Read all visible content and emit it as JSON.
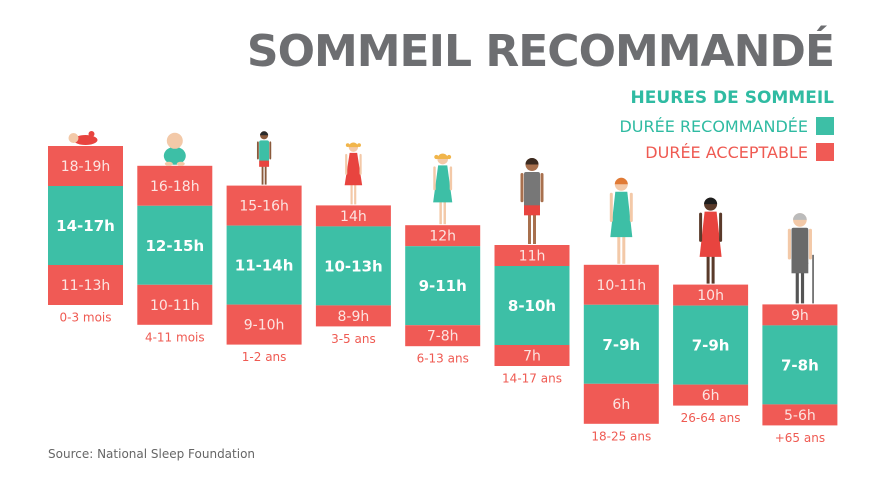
{
  "title": "SOMMEIL RECOMMANDÉ",
  "legend": {
    "heading": "HEURES DE SOMMEIL",
    "recommended": "DURÉE RECOMMANDÉE",
    "acceptable": "DURÉE ACCEPTABLE"
  },
  "source": "Source: National Sleep Foundation",
  "colors": {
    "recommended": "#3dbfa6",
    "acceptable": "#f05a55",
    "title": "#6d6e71",
    "age_label": "#ef5a52"
  },
  "chart_data": {
    "type": "bar",
    "categories": [
      "0-3 mois",
      "4-11 mois",
      "1-2 ans",
      "3-5 ans",
      "6-13 ans",
      "14-17 ans",
      "18-25 ans",
      "26-64 ans",
      "+65 ans"
    ],
    "series": [
      {
        "name": "DURÉE RECOMMANDÉE",
        "values": [
          [
            14,
            17
          ],
          [
            12,
            15
          ],
          [
            11,
            14
          ],
          [
            10,
            13
          ],
          [
            9,
            11
          ],
          [
            8,
            10
          ],
          [
            7,
            9
          ],
          [
            7,
            9
          ],
          [
            7,
            8
          ]
        ],
        "labels": [
          "14-17h",
          "12-15h",
          "11-14h",
          "10-13h",
          "9-11h",
          "8-10h",
          "7-9h",
          "7-9h",
          "7-8h"
        ]
      },
      {
        "name": "DURÉE ACCEPTABLE (haut)",
        "labels": [
          "18-19h",
          "16-18h",
          "15-16h",
          "14h",
          "12h",
          "11h",
          "10-11h",
          "10h",
          "9h"
        ]
      },
      {
        "name": "DURÉE ACCEPTABLE (bas)",
        "labels": [
          "11-13h",
          "10-11h",
          "9-10h",
          "8-9h",
          "7-8h",
          "7h",
          "6h",
          "6h",
          "5-6h"
        ]
      }
    ]
  }
}
